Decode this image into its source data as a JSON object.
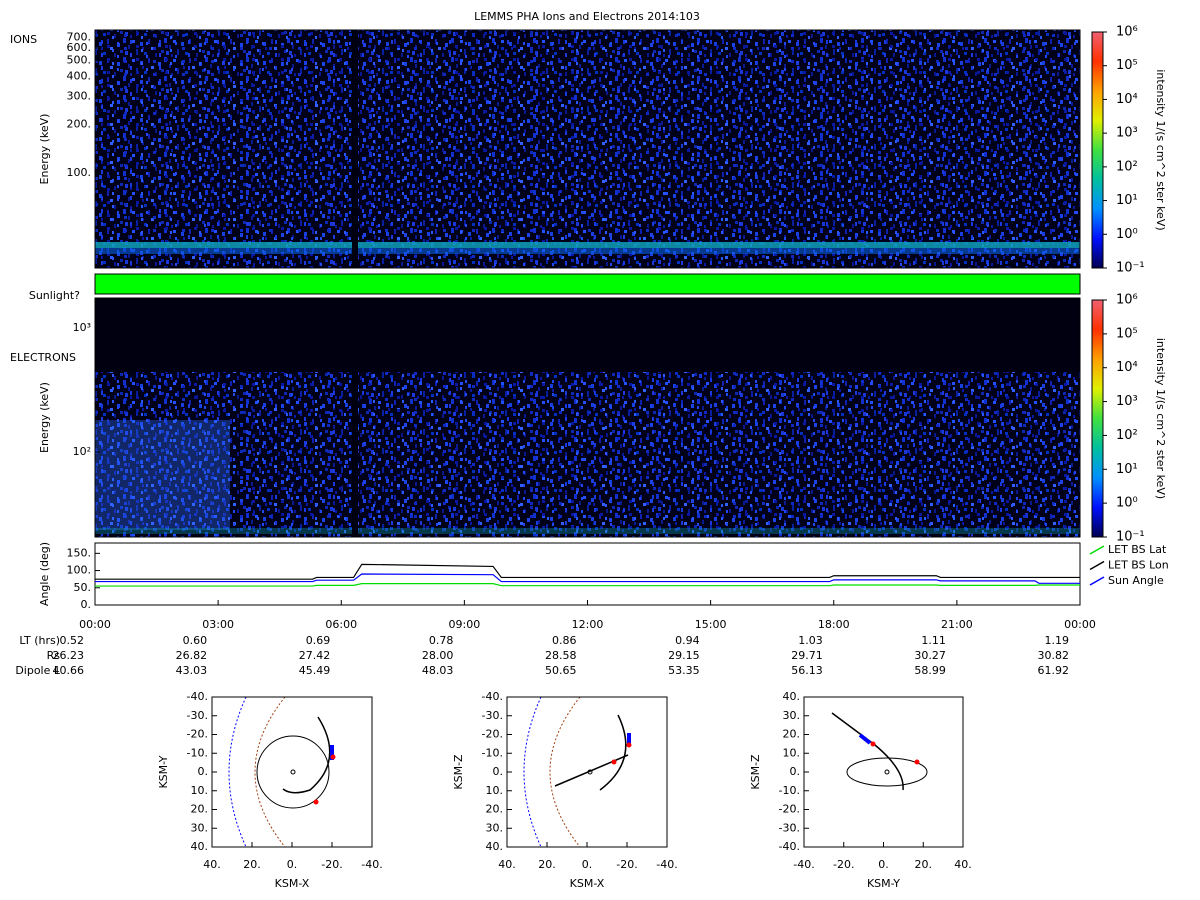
{
  "chart_data": [
    {
      "type": "spectrogram",
      "title": "LEMMS PHA Ions and Electrons  2014:103",
      "label": "IONS",
      "ylabel": "Energy (keV)",
      "ylog": true,
      "ylim": [
        25.5,
        777
      ],
      "yticks": [
        {
          "value": 100,
          "label": "100."
        },
        {
          "value": 200,
          "label": "200."
        },
        {
          "value": 300,
          "label": "300."
        },
        {
          "value": 400,
          "label": "400."
        },
        {
          "value": 500,
          "label": "500."
        },
        {
          "value": 600,
          "label": "600."
        },
        {
          "value": 700,
          "label": "700."
        }
      ],
      "colorbar": {
        "label": "intensity 1/(s cm^2 ster keV)",
        "log": true,
        "lim": [
          0.1,
          1000000
        ],
        "ticks": [
          {
            "value": 0.1,
            "label": "10⁻¹"
          },
          {
            "value": 1,
            "label": "10⁰"
          },
          {
            "value": 10,
            "label": "10¹"
          },
          {
            "value": 100,
            "label": "10²"
          },
          {
            "value": 1000,
            "label": "10³"
          },
          {
            "value": 10000,
            "label": "10⁴"
          },
          {
            "value": 100000,
            "label": "10⁵"
          },
          {
            "value": 1000000,
            "label": "10⁶"
          }
        ],
        "colormap": [
          "#000050",
          "#0010ff",
          "#0090ff",
          "#00c0a0",
          "#40e040",
          "#e0f000",
          "#ffa000",
          "#ff3000",
          "#f06070"
        ]
      }
    },
    {
      "type": "strip",
      "label": "Sunlight?",
      "color": "#00ff00"
    },
    {
      "type": "spectrogram",
      "label": "ELECTRONS",
      "ylabel": "Energy (keV)",
      "ylog": true,
      "ylim": [
        20.6,
        1746
      ],
      "yticks": [
        {
          "value": 100,
          "label": "10²"
        },
        {
          "value": 1000,
          "label": "10³"
        }
      ],
      "colorbar": {
        "label": "intensity 1/(s cm^2 ster keV)",
        "log": true,
        "lim": [
          0.1,
          1000000
        ],
        "ticks": [
          {
            "value": 0.1,
            "label": "10⁻¹"
          },
          {
            "value": 1,
            "label": "10⁰"
          },
          {
            "value": 10,
            "label": "10¹"
          },
          {
            "value": 100,
            "label": "10²"
          },
          {
            "value": 1000,
            "label": "10³"
          },
          {
            "value": 10000,
            "label": "10⁴"
          },
          {
            "value": 100000,
            "label": "10⁵"
          },
          {
            "value": 1000000,
            "label": "10⁶"
          }
        ],
        "colormap": [
          "#000050",
          "#0010ff",
          "#0090ff",
          "#00c0a0",
          "#40e040",
          "#e0f000",
          "#ffa000",
          "#ff3000",
          "#f06070"
        ]
      }
    },
    {
      "type": "line",
      "ylabel": "Angle (deg)",
      "legend": "right",
      "xlim": [
        0,
        24
      ],
      "xticks": [
        {
          "value": 0,
          "label": "00:00"
        },
        {
          "value": 3,
          "label": "03:00"
        },
        {
          "value": 6,
          "label": "06:00"
        },
        {
          "value": 9,
          "label": "09:00"
        },
        {
          "value": 12,
          "label": "12:00"
        },
        {
          "value": 15,
          "label": "15:00"
        },
        {
          "value": 18,
          "label": "18:00"
        },
        {
          "value": 21,
          "label": "21:00"
        },
        {
          "value": 24,
          "label": "00:00"
        }
      ],
      "ylim": [
        0,
        180
      ],
      "yticks": [
        {
          "value": 0,
          "label": "0."
        },
        {
          "value": 50,
          "label": "50."
        },
        {
          "value": 100,
          "label": "100."
        },
        {
          "value": 150,
          "label": "150."
        }
      ],
      "x": [
        0,
        5.3,
        5.4,
        6.3,
        6.5,
        9.7,
        9.9,
        17.9,
        18.0,
        20.5,
        20.6,
        22.9,
        23.0,
        24
      ],
      "series": [
        {
          "name": "LET BS Lat",
          "color": "#00dd00",
          "values": [
            55,
            55,
            57,
            57,
            62,
            62,
            56,
            56,
            58,
            58,
            57,
            57,
            58,
            58
          ]
        },
        {
          "name": "LET BS Lon",
          "color": "#000000",
          "values": [
            75,
            75,
            80,
            80,
            118,
            112,
            80,
            80,
            85,
            85,
            80,
            80,
            80,
            80
          ]
        },
        {
          "name": "Sun Angle",
          "color": "#0000ff",
          "values": [
            68,
            68,
            72,
            72,
            90,
            88,
            68,
            68,
            73,
            73,
            70,
            70,
            63,
            63
          ]
        }
      ]
    },
    {
      "type": "orbit",
      "xlabel": "KSM-X",
      "ylabel": "KSM-Y",
      "xlim": [
        40,
        -40
      ],
      "ylim": [
        40,
        -40
      ],
      "xticks": [
        {
          "value": 40,
          "label": "40."
        },
        {
          "value": 20,
          "label": "20."
        },
        {
          "value": 0,
          "label": "0."
        },
        {
          "value": -20,
          "label": "-20."
        },
        {
          "value": -40,
          "label": "-40."
        }
      ],
      "yticks": [
        {
          "value": -40,
          "label": "-40."
        },
        {
          "value": -30,
          "label": "-30."
        },
        {
          "value": -20,
          "label": "-20."
        },
        {
          "value": -10,
          "label": "-10."
        },
        {
          "value": 0,
          "label": "0."
        },
        {
          "value": 10,
          "label": "10."
        },
        {
          "value": 20,
          "label": "20."
        },
        {
          "value": 30,
          "label": "30."
        },
        {
          "value": 40,
          "label": "40."
        }
      ]
    },
    {
      "type": "orbit",
      "xlabel": "KSM-X",
      "ylabel": "KSM-Z",
      "xlim": [
        40,
        -40
      ],
      "ylim": [
        40,
        -40
      ],
      "xticks": [
        {
          "value": 40,
          "label": "40."
        },
        {
          "value": 20,
          "label": "20."
        },
        {
          "value": 0,
          "label": "0."
        },
        {
          "value": -20,
          "label": "-20."
        },
        {
          "value": -40,
          "label": "-40."
        }
      ],
      "yticks": [
        {
          "value": -40,
          "label": "-40."
        },
        {
          "value": -30,
          "label": "-30."
        },
        {
          "value": -20,
          "label": "-20."
        },
        {
          "value": -10,
          "label": "-10."
        },
        {
          "value": 0,
          "label": "0."
        },
        {
          "value": 10,
          "label": "10."
        },
        {
          "value": 20,
          "label": "20."
        },
        {
          "value": 30,
          "label": "30."
        },
        {
          "value": 40,
          "label": "40."
        }
      ]
    },
    {
      "type": "orbit",
      "xlabel": "KSM-Y",
      "ylabel": "KSM-Z",
      "xlim": [
        -40,
        40
      ],
      "ylim": [
        -40,
        40
      ],
      "xticks": [
        {
          "value": -40,
          "label": "-40."
        },
        {
          "value": -20,
          "label": "-20."
        },
        {
          "value": 0,
          "label": "0."
        },
        {
          "value": 20,
          "label": "20."
        },
        {
          "value": 40,
          "label": "40."
        }
      ],
      "yticks": [
        {
          "value": 40,
          "label": "40."
        },
        {
          "value": 30,
          "label": "30."
        },
        {
          "value": 20,
          "label": "20."
        },
        {
          "value": 10,
          "label": "10."
        },
        {
          "value": 0,
          "label": "0."
        },
        {
          "value": -10,
          "label": "-10."
        },
        {
          "value": -20,
          "label": "-20."
        },
        {
          "value": -30,
          "label": "-30."
        },
        {
          "value": -40,
          "label": "-40."
        }
      ]
    }
  ],
  "ephemeris": {
    "rows": [
      {
        "label": "LT (hrs)",
        "values": [
          "0.52",
          "0.60",
          "0.69",
          "0.78",
          "0.86",
          "0.94",
          "1.03",
          "1.11",
          "1.19"
        ]
      },
      {
        "label": "Rs",
        "values": [
          "26.23",
          "26.82",
          "27.42",
          "28.00",
          "28.58",
          "29.15",
          "29.71",
          "30.27",
          "30.82"
        ]
      },
      {
        "label": "Dipole L",
        "values": [
          "40.66",
          "43.03",
          "45.49",
          "48.03",
          "50.65",
          "53.35",
          "56.13",
          "58.99",
          "61.92"
        ]
      }
    ]
  }
}
